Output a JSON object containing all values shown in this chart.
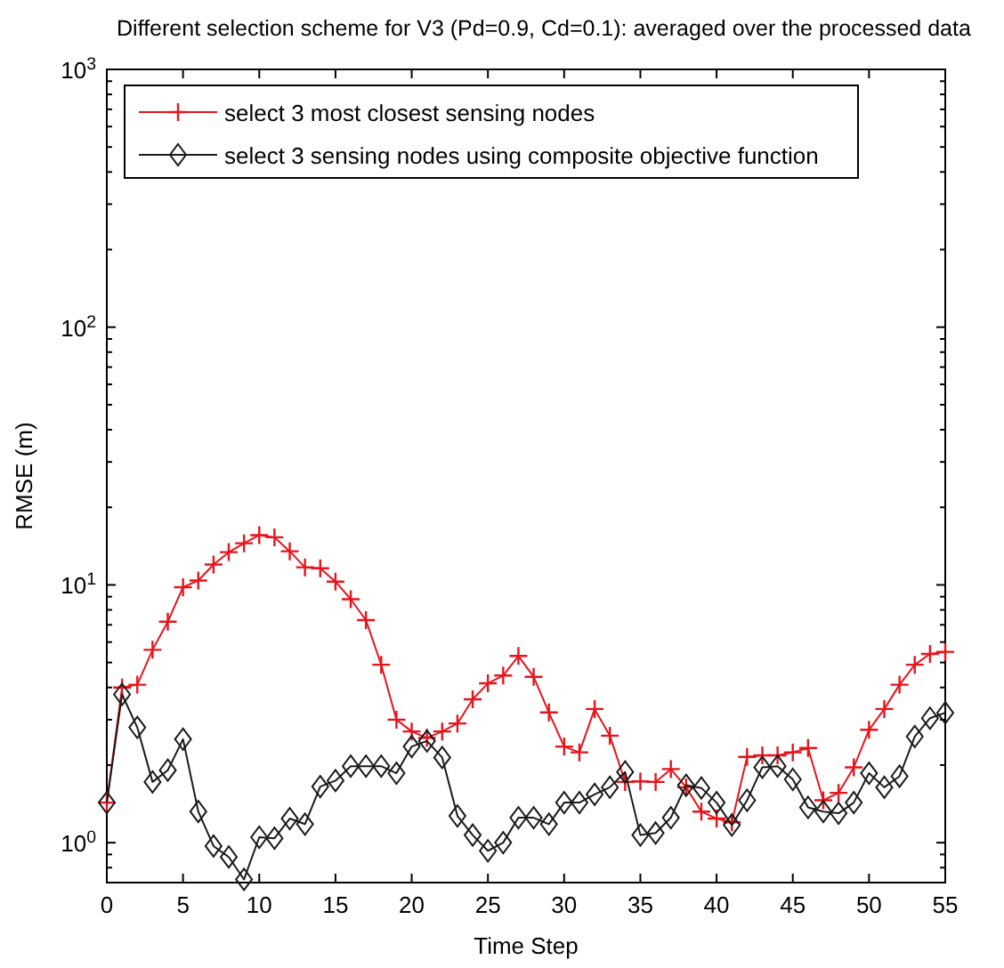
{
  "chart_data": {
    "type": "line",
    "title": "Different selection scheme for V3 (Pd=0.9, Cd=0.1): averaged over the processed data",
    "xlabel": "Time Step",
    "ylabel": "RMSE (m)",
    "log": "y",
    "grid": false,
    "legend": "top left",
    "x": [
      0,
      1,
      2,
      3,
      4,
      5,
      6,
      7,
      8,
      9,
      10,
      11,
      12,
      13,
      14,
      15,
      16,
      17,
      18,
      19,
      20,
      21,
      22,
      23,
      24,
      25,
      26,
      27,
      28,
      29,
      30,
      31,
      32,
      33,
      34,
      35,
      36,
      37,
      38,
      39,
      40,
      41,
      42,
      43,
      44,
      45,
      46,
      47,
      48,
      49,
      50,
      51,
      52,
      53,
      54,
      55
    ],
    "xlim": [
      0,
      55
    ],
    "xticks": [
      0,
      5,
      10,
      15,
      20,
      25,
      30,
      35,
      40,
      45,
      50,
      55
    ],
    "ylim": [
      0.7,
      1000
    ],
    "yticks": [
      {
        "value": 0.7,
        "label": null
      },
      {
        "value": 0.8,
        "label": null
      },
      {
        "value": 0.9,
        "label": null
      },
      {
        "value": 1,
        "label": "10$^{0}$"
      },
      {
        "value": 2,
        "label": null
      },
      {
        "value": 3,
        "label": null
      },
      {
        "value": 4,
        "label": null
      },
      {
        "value": 5,
        "label": null
      },
      {
        "value": 6,
        "label": null
      },
      {
        "value": 7,
        "label": null
      },
      {
        "value": 8,
        "label": null
      },
      {
        "value": 9,
        "label": null
      },
      {
        "value": 10,
        "label": "10$^{1}$"
      },
      {
        "value": 20,
        "label": null
      },
      {
        "value": 30,
        "label": null
      },
      {
        "value": 40,
        "label": null
      },
      {
        "value": 50,
        "label": null
      },
      {
        "value": 60,
        "label": null
      },
      {
        "value": 70,
        "label": null
      },
      {
        "value": 80,
        "label": null
      },
      {
        "value": 90,
        "label": null
      },
      {
        "value": 100,
        "label": "10$^{2}$"
      },
      {
        "value": 200,
        "label": null
      },
      {
        "value": 300,
        "label": null
      },
      {
        "value": 400,
        "label": null
      },
      {
        "value": 500,
        "label": null
      },
      {
        "value": 600,
        "label": null
      },
      {
        "value": 700,
        "label": null
      },
      {
        "value": 800,
        "label": null
      },
      {
        "value": 900,
        "label": null
      },
      {
        "value": 1000,
        "label": "10$^{3}$"
      }
    ],
    "series": [
      {
        "name": "select 3 most closest sensing nodes",
        "color": "#e8141c",
        "marker": "cross",
        "values": [
          1.43,
          4.0,
          4.1,
          5.6,
          7.2,
          9.8,
          10.4,
          12,
          13.4,
          14.5,
          15.6,
          15.3,
          13.5,
          11.7,
          11.6,
          10.3,
          8.8,
          7.3,
          4.9,
          3.0,
          2.7,
          2.55,
          2.7,
          2.9,
          3.6,
          4.15,
          4.45,
          5.3,
          4.4,
          3.2,
          2.36,
          2.24,
          3.3,
          2.6,
          1.72,
          1.73,
          1.72,
          1.93,
          1.64,
          1.32,
          1.24,
          1.2,
          2.15,
          2.18,
          2.18,
          2.24,
          2.33,
          1.46,
          1.56,
          1.96,
          2.74,
          3.3,
          4.1,
          4.9,
          5.4,
          5.5
        ]
      },
      {
        "name": "select 3 sensing nodes using composite objective function",
        "color": "#1a1a1a",
        "marker": "diamond",
        "values": [
          1.43,
          3.76,
          2.8,
          1.72,
          1.91,
          2.52,
          1.32,
          0.97,
          0.88,
          0.72,
          1.05,
          1.04,
          1.24,
          1.18,
          1.65,
          1.74,
          1.98,
          1.98,
          1.98,
          1.86,
          2.36,
          2.48,
          2.14,
          1.27,
          1.07,
          0.93,
          1.0,
          1.25,
          1.25,
          1.18,
          1.43,
          1.43,
          1.54,
          1.64,
          1.88,
          1.07,
          1.09,
          1.25,
          1.67,
          1.63,
          1.43,
          1.17,
          1.46,
          1.96,
          1.98,
          1.76,
          1.37,
          1.32,
          1.3,
          1.43,
          1.86,
          1.64,
          1.81,
          2.58,
          3.04,
          3.19
        ]
      }
    ]
  }
}
